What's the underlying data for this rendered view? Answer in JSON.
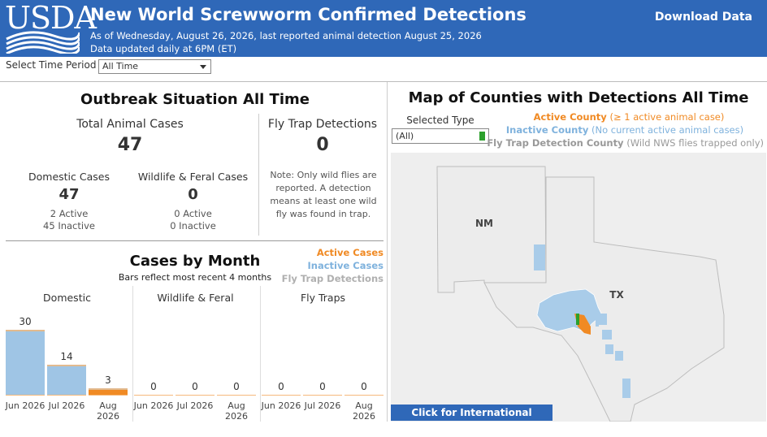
{
  "header": {
    "logo_text": "USDA",
    "title": "New World Screwworm Confirmed Detections",
    "subtitle_1": "As of Wednesday, August 26, 2026, last reported animal detection August 25, 2026",
    "subtitle_2": "Data updated daily at 6PM (ET)",
    "download_label": "Download Data",
    "bg_color": "#2f68b8"
  },
  "filter": {
    "label": "Select Time Period",
    "value": "All Time"
  },
  "outbreak": {
    "title": "Outbreak Situation All Time",
    "total_label": "Total Animal Cases",
    "total_value": "47",
    "fly_label": "Fly Trap Detections",
    "fly_value": "0",
    "domestic_label": "Domestic Cases",
    "domestic_value": "47",
    "domestic_active": "2 Active",
    "domestic_inactive": "45 Inactive",
    "wildlife_label": "Wildlife & Feral Cases",
    "wildlife_value": "0",
    "wildlife_active": "0 Active",
    "wildlife_inactive": "0 Inactive",
    "note_1": "Note: Only wild flies are",
    "note_2": "reported. A detection",
    "note_3": "means at least one wild",
    "note_4": "fly was found in trap."
  },
  "legend_small": {
    "active": "Active Cases",
    "inactive": "Inactive Cases",
    "traps": "Fly Trap Detections",
    "active_color": "#f08a24",
    "inactive_color": "#7fb2dd",
    "traps_color": "#b0b0b0"
  },
  "cases_by_month": {
    "title": "Cases by Month",
    "subtitle": "Bars reflect most recent 4 months",
    "panels": [
      "Domestic",
      "Wildlife & Feral",
      "Fly Traps"
    ]
  },
  "chart_data": {
    "type": "bar",
    "categories": [
      "Jun 2026",
      "Jul 2026",
      "Aug 2026"
    ],
    "panels": [
      {
        "name": "Domestic",
        "values": [
          30,
          14,
          3
        ],
        "active": [
          0,
          0,
          2
        ]
      },
      {
        "name": "Wildlife & Feral",
        "values": [
          0,
          0,
          0
        ]
      },
      {
        "name": "Fly Traps",
        "values": [
          0,
          0,
          0
        ]
      }
    ],
    "ylim": [
      0,
      35
    ]
  },
  "map": {
    "title": "Map of Counties with Detections All Time",
    "type_label": "Selected Type",
    "type_value": "(All)",
    "legend_active": "Active County",
    "legend_active_note": "(≥ 1 active animal case)",
    "legend_inactive": "Inactive County",
    "legend_inactive_note": "(No current active animal cases)",
    "legend_trap": "Fly Trap Detection County",
    "legend_trap_note": "(Wild NWS flies trapped only)",
    "state_nm": "NM",
    "state_tx": "TX",
    "button": "Click for International Exports",
    "active_color": "#f08a24",
    "inactive_color": "#a9cce9",
    "trap_color": "#2ca02c"
  }
}
